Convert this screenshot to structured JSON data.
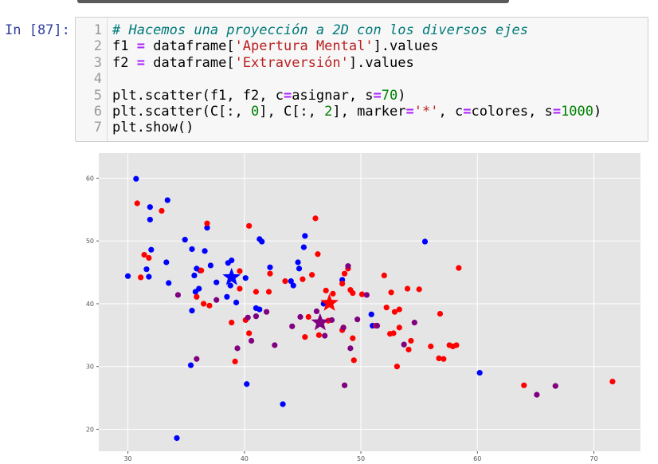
{
  "prompt": "In [87]:",
  "code": {
    "line_numbers": [
      "1",
      "2",
      "3",
      "4",
      "5",
      "6",
      "7"
    ],
    "lines": [
      [
        {
          "t": "# Hacemos una proyección a 2D con los diversos ejes",
          "c": "cm"
        }
      ],
      [
        {
          "t": "f1 ",
          "c": ""
        },
        {
          "t": "=",
          "c": "op"
        },
        {
          "t": " dataframe[",
          "c": ""
        },
        {
          "t": "'Apertura Mental'",
          "c": "st"
        },
        {
          "t": "].values",
          "c": ""
        }
      ],
      [
        {
          "t": "f2 ",
          "c": ""
        },
        {
          "t": "=",
          "c": "op"
        },
        {
          "t": " dataframe[",
          "c": ""
        },
        {
          "t": "'Extraversión'",
          "c": "st"
        },
        {
          "t": "].values",
          "c": ""
        }
      ],
      [],
      [
        {
          "t": "plt.scatter(f1, f2, c",
          "c": ""
        },
        {
          "t": "=",
          "c": "op"
        },
        {
          "t": "asignar, s",
          "c": ""
        },
        {
          "t": "=",
          "c": "op"
        },
        {
          "t": "70",
          "c": "nm"
        },
        {
          "t": ")",
          "c": ""
        }
      ],
      [
        {
          "t": "plt.scatter(C[:, ",
          "c": ""
        },
        {
          "t": "0",
          "c": "nm"
        },
        {
          "t": "], C[:, ",
          "c": ""
        },
        {
          "t": "2",
          "c": "nm"
        },
        {
          "t": "], marker",
          "c": ""
        },
        {
          "t": "=",
          "c": "op"
        },
        {
          "t": "'*'",
          "c": "st"
        },
        {
          "t": ", c",
          "c": ""
        },
        {
          "t": "=",
          "c": "op"
        },
        {
          "t": "colores, s",
          "c": ""
        },
        {
          "t": "=",
          "c": "op"
        },
        {
          "t": "1000",
          "c": "nm"
        },
        {
          "t": ")",
          "c": ""
        }
      ],
      [
        {
          "t": "plt.show()",
          "c": ""
        }
      ]
    ]
  },
  "chart_data": {
    "type": "scatter",
    "xlim": [
      27.5,
      74
    ],
    "ylim": [
      16.5,
      64
    ],
    "x_ticks": [
      30,
      40,
      50,
      60,
      70
    ],
    "y_ticks": [
      20,
      30,
      40,
      50,
      60
    ],
    "grid": true,
    "background": "#e5e5e5",
    "colors": {
      "blue": "#0000ff",
      "red": "#ff0000",
      "purple": "#800080"
    },
    "series": [
      {
        "color": "blue",
        "points": [
          [
            30.7,
            59.9
          ],
          [
            33.4,
            56.5
          ],
          [
            31.9,
            55.4
          ],
          [
            31.9,
            53.4
          ],
          [
            36.8,
            52.1
          ],
          [
            34.9,
            50.2
          ],
          [
            32.0,
            48.6
          ],
          [
            35.5,
            48.7
          ],
          [
            36.6,
            48.4
          ],
          [
            41.3,
            50.3
          ],
          [
            41.5,
            49.9
          ],
          [
            45.2,
            50.8
          ],
          [
            45.1,
            49.0
          ],
          [
            33.3,
            46.6
          ],
          [
            35.9,
            45.6
          ],
          [
            36.2,
            45.3
          ],
          [
            38.6,
            46.5
          ],
          [
            38.9,
            46.9
          ],
          [
            37.1,
            46.1
          ],
          [
            42.2,
            45.8
          ],
          [
            44.6,
            46.6
          ],
          [
            44.7,
            45.6
          ],
          [
            30.0,
            44.4
          ],
          [
            31.6,
            45.5
          ],
          [
            35.7,
            44.5
          ],
          [
            31.8,
            44.3
          ],
          [
            33.5,
            43.3
          ],
          [
            37.6,
            43.4
          ],
          [
            36.1,
            42.4
          ],
          [
            35.8,
            41.9
          ],
          [
            38.5,
            41.1
          ],
          [
            38.8,
            42.9
          ],
          [
            40.1,
            44.1
          ],
          [
            44.0,
            43.6
          ],
          [
            44.2,
            42.9
          ],
          [
            48.4,
            43.8
          ],
          [
            39.3,
            40.2
          ],
          [
            41.0,
            39.3
          ],
          [
            41.3,
            39.1
          ],
          [
            35.5,
            38.9
          ],
          [
            46.8,
            40.0
          ],
          [
            50.9,
            38.3
          ],
          [
            51.0,
            36.5
          ],
          [
            55.5,
            49.9
          ],
          [
            35.4,
            30.2
          ],
          [
            40.2,
            27.2
          ],
          [
            43.3,
            24.0
          ],
          [
            34.2,
            18.6
          ],
          [
            60.2,
            29.0
          ]
        ]
      },
      {
        "color": "red",
        "points": [
          [
            30.8,
            56.0
          ],
          [
            32.9,
            54.8
          ],
          [
            36.8,
            52.8
          ],
          [
            40.4,
            52.4
          ],
          [
            46.1,
            53.6
          ],
          [
            31.4,
            47.8
          ],
          [
            31.8,
            47.3
          ],
          [
            36.3,
            45.3
          ],
          [
            39.6,
            45.2
          ],
          [
            46.3,
            47.9
          ],
          [
            48.9,
            45.6
          ],
          [
            52.0,
            44.5
          ],
          [
            58.4,
            45.7
          ],
          [
            31.1,
            44.2
          ],
          [
            42.2,
            44.8
          ],
          [
            43.5,
            43.6
          ],
          [
            45.0,
            43.9
          ],
          [
            45.8,
            44.6
          ],
          [
            48.6,
            44.8
          ],
          [
            48.4,
            43.2
          ],
          [
            39.6,
            42.4
          ],
          [
            41.0,
            41.9
          ],
          [
            42.1,
            41.9
          ],
          [
            47.0,
            42.1
          ],
          [
            47.6,
            41.6
          ],
          [
            49.1,
            42.2
          ],
          [
            49.3,
            41.7
          ],
          [
            50.1,
            41.5
          ],
          [
            52.6,
            41.8
          ],
          [
            54.0,
            42.4
          ],
          [
            55.0,
            42.3
          ],
          [
            35.9,
            41.1
          ],
          [
            36.5,
            40.0
          ],
          [
            37.0,
            39.7
          ],
          [
            52.2,
            39.4
          ],
          [
            52.9,
            38.7
          ],
          [
            53.3,
            39.1
          ],
          [
            56.8,
            38.4
          ],
          [
            38.9,
            37.0
          ],
          [
            40.1,
            37.4
          ],
          [
            40.4,
            35.3
          ],
          [
            45.5,
            37.9
          ],
          [
            47.2,
            37.3
          ],
          [
            48.5,
            36.2
          ],
          [
            48.4,
            35.8
          ],
          [
            45.2,
            34.7
          ],
          [
            46.4,
            35.0
          ],
          [
            49.3,
            34.5
          ],
          [
            51.3,
            36.5
          ],
          [
            52.5,
            35.2
          ],
          [
            52.8,
            35.3
          ],
          [
            53.3,
            36.2
          ],
          [
            54.3,
            34.1
          ],
          [
            56.0,
            33.2
          ],
          [
            57.6,
            33.4
          ],
          [
            58.2,
            33.4
          ],
          [
            57.9,
            33.2
          ],
          [
            54.1,
            32.7
          ],
          [
            56.7,
            31.3
          ],
          [
            57.1,
            31.2
          ],
          [
            49.4,
            31.0
          ],
          [
            39.2,
            30.8
          ],
          [
            64.0,
            27.0
          ],
          [
            71.6,
            27.6
          ],
          [
            53.1,
            30.0
          ]
        ]
      },
      {
        "color": "purple",
        "points": [
          [
            34.3,
            41.4
          ],
          [
            37.6,
            40.6
          ],
          [
            40.3,
            37.8
          ],
          [
            41.0,
            38.0
          ],
          [
            41.9,
            38.7
          ],
          [
            42.6,
            33.4
          ],
          [
            44.1,
            36.4
          ],
          [
            44.8,
            37.9
          ],
          [
            46.9,
            34.9
          ],
          [
            47.5,
            37.4
          ],
          [
            48.5,
            36.2
          ],
          [
            48.9,
            46.0
          ],
          [
            49.1,
            32.9
          ],
          [
            49.7,
            37.5
          ],
          [
            50.5,
            41.4
          ],
          [
            51.4,
            36.5
          ],
          [
            53.7,
            33.5
          ],
          [
            54.6,
            37.0
          ],
          [
            40.6,
            34.1
          ],
          [
            39.4,
            32.9
          ],
          [
            35.9,
            31.2
          ],
          [
            46.2,
            38.8
          ],
          [
            48.6,
            27.0
          ],
          [
            65.1,
            25.5
          ],
          [
            66.7,
            26.9
          ]
        ]
      }
    ],
    "centroids": [
      {
        "color": "blue",
        "x": 38.9,
        "y": 44.2
      },
      {
        "color": "red",
        "x": 47.3,
        "y": 40.1
      },
      {
        "color": "purple",
        "x": 46.5,
        "y": 37.0
      }
    ]
  }
}
